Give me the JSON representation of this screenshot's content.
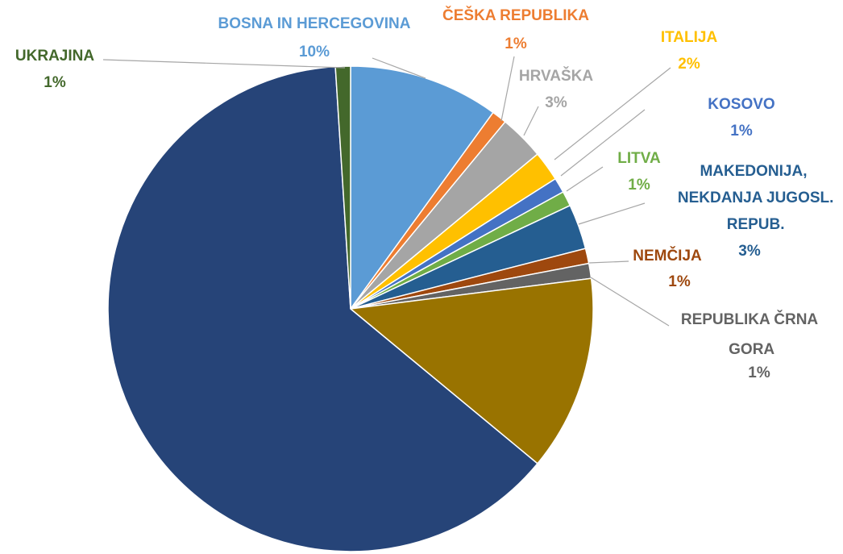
{
  "chart_data": {
    "type": "pie",
    "categories": [
      "BOSNA IN HERCEGOVINA",
      "ČEŠKA REPUBLIKA",
      "HRVAŠKA",
      "ITALIJA",
      "KOSOVO",
      "LITVA",
      "MAKEDONIJA, NEKDANJA JUGOSL. REPUB.",
      "NEMČIJA",
      "REPUBLIKA ČRNA GORA",
      null,
      null,
      "UKRAJINA"
    ],
    "values": [
      10,
      1,
      3,
      2,
      1,
      1,
      3,
      1,
      1,
      13,
      63,
      1
    ],
    "value_labels": [
      "10%",
      "1%",
      "3%",
      "2%",
      "1%",
      "1%",
      "3%",
      "1%",
      "1%",
      null,
      null,
      "1%"
    ],
    "colors": [
      "#5b9bd5",
      "#ed7d31",
      "#a5a5a5",
      "#ffc000",
      "#4472c4",
      "#70ad47",
      "#255e91",
      "#9e480e",
      "#636363",
      "#997300",
      "#264478",
      "#43682b"
    ]
  }
}
